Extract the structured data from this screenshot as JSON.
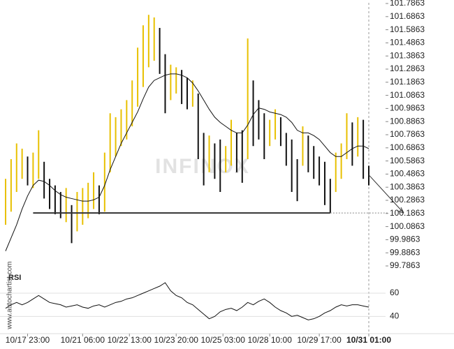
{
  "chart_data": [
    {
      "type": "range",
      "x": [
        0,
        1,
        2,
        3,
        4,
        5,
        6,
        7,
        8,
        9,
        10,
        11,
        12,
        13,
        14,
        15,
        16,
        17,
        18,
        19,
        20,
        21,
        22,
        23,
        24,
        25,
        26,
        27,
        28,
        29,
        30,
        31,
        32,
        33,
        34,
        35,
        36,
        37,
        38,
        39,
        40,
        41,
        42,
        43,
        44,
        45,
        46,
        47,
        48,
        49,
        50,
        51,
        52,
        53,
        54,
        55,
        56,
        57,
        58,
        59,
        60,
        61,
        62,
        63,
        64,
        65,
        66
      ],
      "high": [
        100.45,
        100.6,
        100.72,
        100.68,
        100.62,
        100.65,
        100.82,
        100.58,
        100.45,
        100.4,
        100.35,
        100.38,
        100.25,
        100.35,
        100.38,
        100.42,
        100.5,
        100.4,
        100.65,
        100.95,
        100.92,
        100.98,
        101.05,
        101.2,
        101.45,
        101.62,
        101.7,
        101.68,
        101.6,
        101.4,
        101.32,
        101.3,
        101.28,
        101.22,
        101.2,
        101.1,
        100.8,
        100.78,
        100.72,
        100.75,
        100.7,
        100.9,
        100.8,
        100.82,
        101.52,
        101.2,
        101.05,
        100.95,
        100.9,
        100.98,
        100.92,
        100.8,
        100.75,
        100.6,
        100.85,
        100.78,
        100.7,
        100.62,
        100.58,
        100.45,
        100.65,
        100.72,
        100.95,
        100.88,
        100.92,
        100.9,
        100.55
      ],
      "low": [
        100.1,
        100.2,
        100.35,
        100.45,
        100.4,
        100.38,
        100.45,
        100.3,
        100.22,
        100.18,
        100.15,
        100.12,
        99.96,
        100.05,
        100.1,
        100.15,
        100.22,
        100.18,
        100.2,
        100.5,
        100.62,
        100.7,
        100.75,
        100.85,
        101.0,
        101.15,
        101.3,
        101.35,
        101.25,
        100.95,
        101.05,
        101.1,
        101.02,
        100.98,
        101.0,
        100.6,
        100.4,
        100.5,
        100.45,
        100.35,
        100.5,
        100.55,
        100.5,
        100.42,
        100.6,
        100.7,
        100.75,
        100.6,
        100.7,
        100.75,
        100.7,
        100.55,
        100.35,
        100.28,
        100.55,
        100.5,
        100.45,
        100.4,
        100.25,
        100.19,
        100.35,
        100.45,
        100.6,
        100.55,
        100.62,
        100.45,
        100.4
      ],
      "ma": [
        99.9,
        100.0,
        100.1,
        100.22,
        100.32,
        100.4,
        100.44,
        100.43,
        100.4,
        100.36,
        100.33,
        100.31,
        100.3,
        100.29,
        100.28,
        100.28,
        100.29,
        100.31,
        100.4,
        100.52,
        100.62,
        100.72,
        100.8,
        100.88,
        100.96,
        101.06,
        101.15,
        101.2,
        101.22,
        101.24,
        101.25,
        101.25,
        101.24,
        101.22,
        101.18,
        101.12,
        101.05,
        100.98,
        100.92,
        100.88,
        100.85,
        100.82,
        100.8,
        100.8,
        100.86,
        100.94,
        100.99,
        100.98,
        100.96,
        100.95,
        100.94,
        100.92,
        100.88,
        100.82,
        100.8,
        100.8,
        100.78,
        100.75,
        100.7,
        100.65,
        100.62,
        100.62,
        100.65,
        100.68,
        100.7,
        100.7,
        100.68
      ],
      "up_color": "#e8c000",
      "down_color": "#111111",
      "ma_color": "#111111",
      "support": 100.19,
      "forecast_start": 100.48,
      "forecast_end": 100.19,
      "xlim": [
        0,
        66
      ],
      "ylim": [
        99.7863,
        101.7863
      ],
      "yticks": [
        101.7863,
        101.6863,
        101.5863,
        101.4863,
        101.3863,
        101.2863,
        101.1863,
        101.0863,
        100.9863,
        100.8863,
        100.7863,
        100.6863,
        100.5863,
        100.4863,
        100.3863,
        100.2863,
        100.1863,
        100.0863,
        99.9863,
        99.8863,
        99.7863
      ],
      "xticks": [
        {
          "value": 4,
          "label": "10/17 23:00"
        },
        {
          "value": 14,
          "label": "10/21 06:00"
        },
        {
          "value": 22.5,
          "label": "10/22 13:00"
        },
        {
          "value": 31,
          "label": "10/23 20:00"
        },
        {
          "value": 39.5,
          "label": "10/25 03:00"
        },
        {
          "value": 48,
          "label": "10/28 10:00"
        },
        {
          "value": 57,
          "label": "10/29 17:00"
        },
        {
          "value": 66,
          "label": "10/31 01:00"
        }
      ],
      "watermark": "INFINOX",
      "source": "www.autochartist.com"
    },
    {
      "type": "line",
      "title": "RSI",
      "x": [
        0,
        1,
        2,
        3,
        4,
        5,
        6,
        7,
        8,
        9,
        10,
        11,
        12,
        13,
        14,
        15,
        16,
        17,
        18,
        19,
        20,
        21,
        22,
        23,
        24,
        25,
        26,
        27,
        28,
        29,
        30,
        31,
        32,
        33,
        34,
        35,
        36,
        37,
        38,
        39,
        40,
        41,
        42,
        43,
        44,
        45,
        46,
        47,
        48,
        49,
        50,
        51,
        52,
        53,
        54,
        55,
        56,
        57,
        58,
        59,
        60,
        61,
        62,
        63,
        64,
        65,
        66
      ],
      "values": [
        47,
        50,
        52,
        50,
        52,
        55,
        58,
        55,
        52,
        51,
        50,
        48,
        49,
        50,
        48,
        47,
        49,
        50,
        48,
        50,
        52,
        53,
        55,
        56,
        58,
        60,
        62,
        64,
        66,
        69,
        62,
        58,
        56,
        52,
        50,
        46,
        42,
        38,
        40,
        44,
        46,
        47,
        45,
        48,
        52,
        50,
        53,
        55,
        52,
        48,
        45,
        43,
        40,
        41,
        39,
        37,
        38,
        40,
        43,
        45,
        48,
        50,
        49,
        50,
        50,
        49,
        48
      ],
      "color": "#111111",
      "xlim": [
        0,
        66
      ],
      "ylim": [
        30,
        72
      ],
      "yticks": [
        40,
        60
      ],
      "grid": true
    }
  ]
}
